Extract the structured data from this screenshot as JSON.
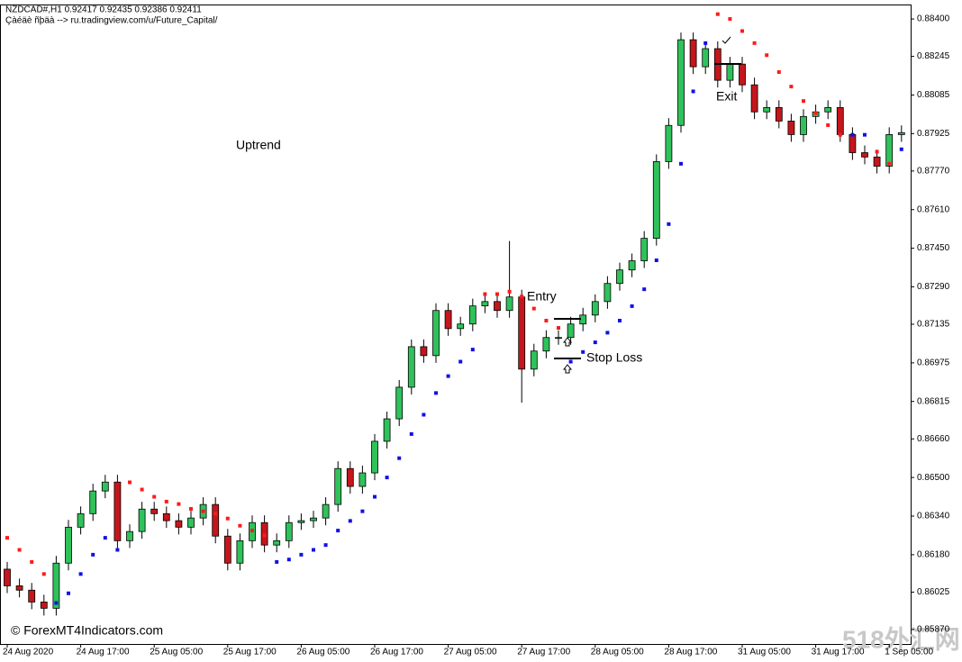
{
  "header": {
    "symbol_line": "NZDCAD#,H1  0.92417 0.92435 0.92386 0.92411",
    "link_line": "Çàéäè ñþäà --> ru.tradingview.com/u/Future_Capital/"
  },
  "credit": "© ForexMT4Indicators.com",
  "watermark": "518外汇网",
  "chart_data": {
    "type": "candlestick",
    "categories": [
      "24 Aug 2020",
      null,
      null,
      null,
      null,
      null,
      "24 Aug 17:00",
      null,
      null,
      null,
      null,
      null,
      "25 Aug 05:00",
      null,
      null,
      null,
      null,
      null,
      "25 Aug 17:00",
      null,
      null,
      null,
      null,
      null,
      "26 Aug 05:00",
      null,
      null,
      null,
      null,
      null,
      "26 Aug 17:00",
      null,
      null,
      null,
      null,
      null,
      "27 Aug 05:00",
      null,
      null,
      null,
      null,
      null,
      "27 Aug 17:00",
      null,
      null,
      null,
      null,
      null,
      "28 Aug 05:00",
      null,
      null,
      null,
      null,
      null,
      "28 Aug 17:00",
      null,
      null,
      null,
      null,
      null,
      "31 Aug 05:00",
      null,
      null,
      null,
      null,
      null,
      "31 Aug 17:00",
      null,
      null,
      null,
      null,
      null,
      "1 Sep 05:00",
      null
    ],
    "open": [
      0.8612,
      0.86051,
      0.86033,
      0.85984,
      0.85958,
      0.86145,
      0.86294,
      0.8635,
      0.86444,
      0.86481,
      0.86238,
      0.86276,
      0.86369,
      0.8635,
      0.86321,
      0.86294,
      0.86332,
      0.86388,
      0.86257,
      0.86145,
      0.86238,
      0.86313,
      0.8622,
      0.86238,
      0.86313,
      0.86321,
      0.86332,
      0.86388,
      0.86537,
      0.86463,
      0.86519,
      0.8665,
      0.86743,
      0.86874,
      0.87042,
      0.87005,
      0.87192,
      0.87117,
      0.87136,
      0.87211,
      0.87229,
      0.87192,
      0.87248,
      0.86949,
      0.87024,
      0.8708,
      0.8708,
      0.87136,
      0.87173,
      0.87229,
      0.87304,
      0.8736,
      0.87398,
      0.87491,
      0.87809,
      0.87959,
      0.88314,
      0.88202,
      0.88277,
      0.88146,
      0.88213,
      0.88127,
      0.88015,
      0.88033,
      0.87977,
      0.87921,
      0.87996,
      0.88015,
      0.88033,
      0.87921,
      0.87846,
      0.87828,
      0.8779,
      0.87921
    ],
    "high": [
      0.8615,
      0.86081,
      0.86063,
      0.86014,
      0.86175,
      0.86324,
      0.8638,
      0.86474,
      0.86511,
      0.86511,
      0.86306,
      0.86399,
      0.86399,
      0.8638,
      0.86351,
      0.86362,
      0.86418,
      0.86418,
      0.86287,
      0.86268,
      0.86343,
      0.86343,
      0.86268,
      0.86343,
      0.86351,
      0.86362,
      0.86418,
      0.86567,
      0.86567,
      0.86549,
      0.8668,
      0.86773,
      0.86904,
      0.87072,
      0.87072,
      0.87222,
      0.87222,
      0.87166,
      0.87241,
      0.87259,
      0.87259,
      0.8748,
      0.87278,
      0.87054,
      0.8711,
      0.8711,
      0.87166,
      0.87203,
      0.87259,
      0.87334,
      0.8739,
      0.87428,
      0.87521,
      0.87839,
      0.87989,
      0.88344,
      0.88344,
      0.88307,
      0.88307,
      0.88243,
      0.88243,
      0.88157,
      0.88063,
      0.88063,
      0.88007,
      0.88026,
      0.88045,
      0.88063,
      0.88063,
      0.87951,
      0.87876,
      0.87858,
      0.87951,
      0.87959
    ],
    "low": [
      0.86021,
      0.86003,
      0.85954,
      0.85928,
      0.85928,
      0.86115,
      0.86264,
      0.8632,
      0.86414,
      0.86208,
      0.86208,
      0.86246,
      0.8632,
      0.86291,
      0.86264,
      0.86264,
      0.86302,
      0.86227,
      0.86115,
      0.86115,
      0.86208,
      0.8619,
      0.8619,
      0.86208,
      0.86283,
      0.86291,
      0.86302,
      0.86358,
      0.86433,
      0.86433,
      0.86489,
      0.8662,
      0.86713,
      0.86844,
      0.86975,
      0.86975,
      0.87087,
      0.87087,
      0.87106,
      0.87181,
      0.87162,
      0.87162,
      0.8681,
      0.86919,
      0.86994,
      0.8705,
      0.8705,
      0.87106,
      0.87143,
      0.87199,
      0.87274,
      0.8733,
      0.87368,
      0.87461,
      0.87779,
      0.87929,
      0.88172,
      0.88172,
      0.88116,
      0.88116,
      0.88097,
      0.87985,
      0.87985,
      0.87947,
      0.87891,
      0.87891,
      0.87966,
      0.87985,
      0.87891,
      0.87816,
      0.87798,
      0.8776,
      0.8776,
      0.87891
    ],
    "close": [
      0.86051,
      0.86033,
      0.85984,
      0.85958,
      0.86145,
      0.86294,
      0.8635,
      0.86444,
      0.86481,
      0.86238,
      0.86276,
      0.86369,
      0.8635,
      0.86321,
      0.86294,
      0.86332,
      0.86388,
      0.86257,
      0.86145,
      0.86238,
      0.86313,
      0.8622,
      0.86238,
      0.86313,
      0.86321,
      0.86332,
      0.86388,
      0.86537,
      0.86463,
      0.86519,
      0.8665,
      0.86743,
      0.86874,
      0.87042,
      0.87005,
      0.87192,
      0.87117,
      0.87136,
      0.87211,
      0.87229,
      0.87192,
      0.87248,
      0.86949,
      0.87024,
      0.8708,
      0.8708,
      0.87136,
      0.87173,
      0.87229,
      0.87304,
      0.8736,
      0.87398,
      0.87491,
      0.87809,
      0.87959,
      0.88314,
      0.88202,
      0.88277,
      0.88146,
      0.88213,
      0.88127,
      0.88015,
      0.88033,
      0.87977,
      0.87921,
      0.87996,
      0.88015,
      0.88033,
      0.87921,
      0.87846,
      0.87828,
      0.8779,
      0.87921,
      0.87929
    ],
    "up_color": "#2fc25b",
    "down_color": "#c4161c",
    "series": [
      {
        "color": "#1010e8",
        "values": [
          null,
          null,
          null,
          null,
          0.8598,
          0.8602,
          0.861,
          0.8618,
          0.8625,
          0.862,
          null,
          null,
          null,
          null,
          null,
          null,
          null,
          null,
          null,
          null,
          null,
          null,
          0.8615,
          0.8616,
          0.8618,
          0.862,
          0.8622,
          0.8628,
          0.8632,
          0.8636,
          0.8642,
          0.865,
          0.8658,
          0.8668,
          0.8676,
          0.8685,
          0.8692,
          0.8698,
          0.8703,
          null,
          null,
          null,
          null,
          null,
          null,
          null,
          0.8698,
          0.8702,
          0.8706,
          0.871,
          0.8715,
          0.8721,
          0.8728,
          0.874,
          0.8755,
          0.878,
          0.881,
          0.883,
          null,
          null,
          null,
          null,
          null,
          null,
          null,
          null,
          null,
          null,
          null,
          0.8792,
          0.8792,
          null,
          null,
          0.8786
        ]
      },
      {
        "color": "#ff1a1a",
        "values": [
          0.8625,
          0.862,
          0.8615,
          0.861,
          null,
          null,
          null,
          null,
          null,
          null,
          0.8648,
          0.8645,
          0.8642,
          0.864,
          0.8639,
          0.8637,
          0.8636,
          0.8635,
          0.8633,
          0.863,
          0.8628,
          0.8626,
          null,
          null,
          null,
          null,
          null,
          null,
          null,
          null,
          null,
          null,
          null,
          null,
          null,
          null,
          null,
          null,
          null,
          0.8726,
          0.8726,
          0.8727,
          0.8725,
          0.872,
          0.8715,
          0.8712,
          null,
          null,
          null,
          null,
          null,
          null,
          null,
          null,
          null,
          null,
          null,
          null,
          0.8842,
          0.884,
          0.8835,
          0.883,
          0.8825,
          0.8818,
          0.8812,
          0.8806,
          0.8801,
          0.8796,
          0.8792,
          null,
          null,
          0.8785,
          0.878,
          null
        ]
      }
    ],
    "ylim": [
      0.8581,
      0.8846
    ],
    "yticks": [
      {
        "value": 0.884,
        "label": "0.88400"
      },
      {
        "value": 0.88245,
        "label": "0.88245"
      },
      {
        "value": 0.88085,
        "label": "0.88085"
      },
      {
        "value": 0.87925,
        "label": "0.87925"
      },
      {
        "value": 0.8777,
        "label": "0.87770"
      },
      {
        "value": 0.8761,
        "label": "0.87610"
      },
      {
        "value": 0.8745,
        "label": "0.87450"
      },
      {
        "value": 0.8729,
        "label": "0.87290"
      },
      {
        "value": 0.87135,
        "label": "0.87135"
      },
      {
        "value": 0.86975,
        "label": "0.86975"
      },
      {
        "value": 0.86815,
        "label": "0.86815"
      },
      {
        "value": 0.8666,
        "label": "0.86660"
      },
      {
        "value": 0.865,
        "label": "0.86500"
      },
      {
        "value": 0.8634,
        "label": "0.86340"
      },
      {
        "value": 0.8618,
        "label": "0.86180"
      },
      {
        "value": 0.86025,
        "label": "0.86025"
      },
      {
        "value": 0.8587,
        "label": "0.85870"
      }
    ],
    "annotations": [
      "Uptrend",
      "Entry",
      "Stop Loss",
      "Exit"
    ]
  }
}
